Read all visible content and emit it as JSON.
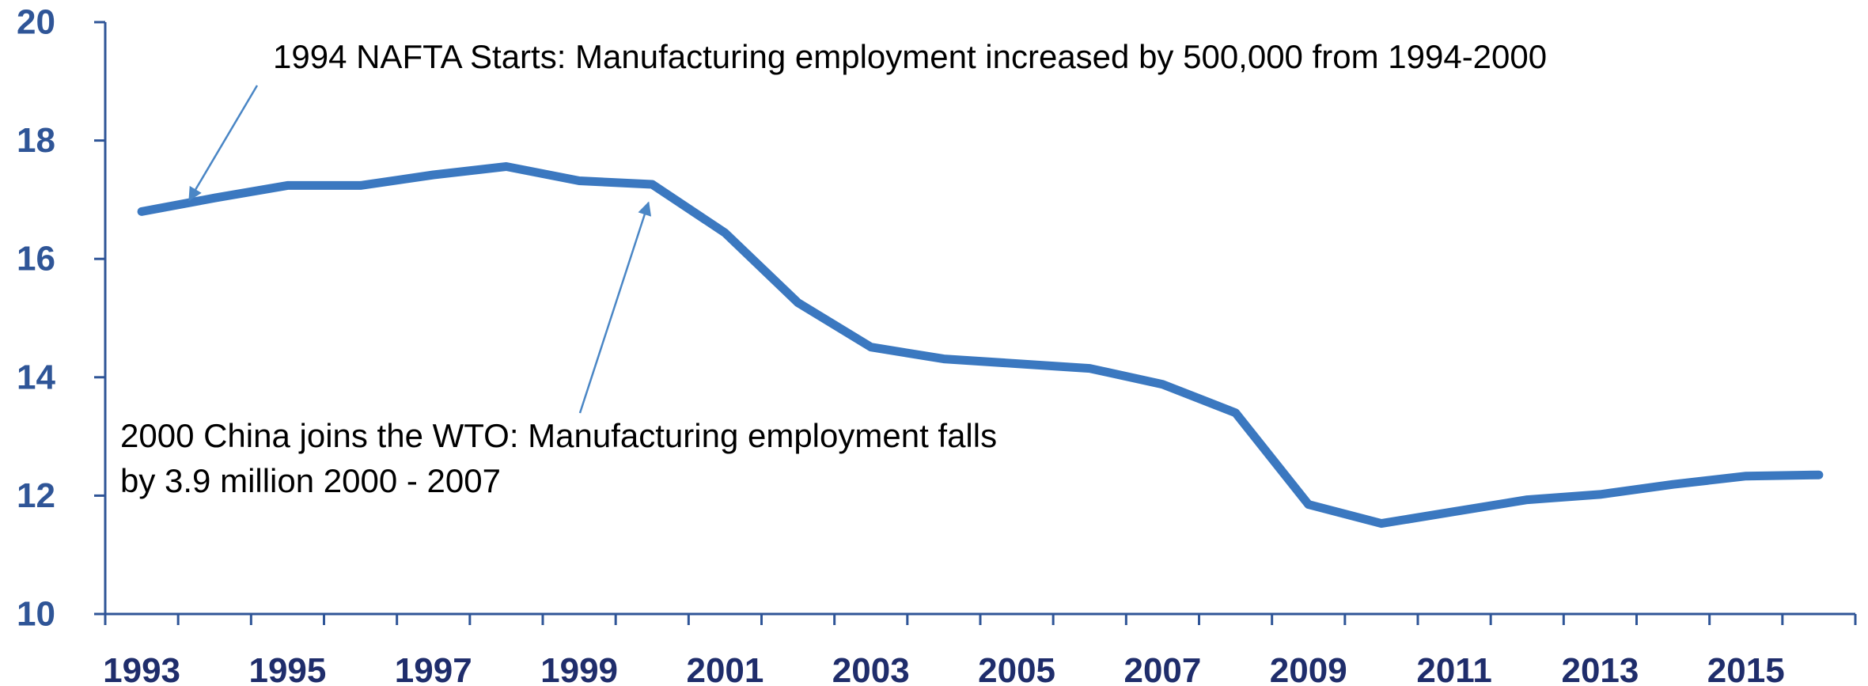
{
  "chart_data": {
    "type": "line",
    "title": "",
    "xlabel": "",
    "ylabel": "",
    "ylim": [
      10,
      20
    ],
    "y_ticks": [
      "10",
      "12",
      "14",
      "16",
      "18",
      "20"
    ],
    "x_tick_labels": [
      "1993",
      "1995",
      "1997",
      "1999",
      "2001",
      "2003",
      "2005",
      "2007",
      "2009",
      "2011",
      "2013",
      "2015"
    ],
    "x_range": [
      1993,
      2017
    ],
    "grid": false,
    "series": [
      {
        "color": "#3b78c0",
        "points": [
          {
            "x": 1993.5,
            "y": 16.8
          },
          {
            "x": 1994.5,
            "y": 17.03
          },
          {
            "x": 1995.5,
            "y": 17.24
          },
          {
            "x": 1996.5,
            "y": 17.24
          },
          {
            "x": 1997.5,
            "y": 17.42
          },
          {
            "x": 1998.5,
            "y": 17.56
          },
          {
            "x": 1999.5,
            "y": 17.32
          },
          {
            "x": 2000.5,
            "y": 17.26
          },
          {
            "x": 2001.5,
            "y": 16.44
          },
          {
            "x": 2002.5,
            "y": 15.26
          },
          {
            "x": 2003.5,
            "y": 14.51
          },
          {
            "x": 2004.5,
            "y": 14.31
          },
          {
            "x": 2005.5,
            "y": 14.23
          },
          {
            "x": 2006.5,
            "y": 14.15
          },
          {
            "x": 2007.5,
            "y": 13.88
          },
          {
            "x": 2008.5,
            "y": 13.4
          },
          {
            "x": 2009.5,
            "y": 11.85
          },
          {
            "x": 2010.5,
            "y": 11.53
          },
          {
            "x": 2011.5,
            "y": 11.73
          },
          {
            "x": 2012.5,
            "y": 11.93
          },
          {
            "x": 2013.5,
            "y": 12.02
          },
          {
            "x": 2014.5,
            "y": 12.19
          },
          {
            "x": 2015.5,
            "y": 12.33
          },
          {
            "x": 2016.5,
            "y": 12.35
          }
        ]
      }
    ],
    "annotations": [
      {
        "lines": [
          "1994 NAFTA Starts: Manufacturing employment increased by 500,000 from 1994-2000"
        ],
        "target": {
          "x": 1994.5,
          "y": 17.1
        }
      },
      {
        "lines": [
          "2000 China joins the WTO: Manufacturing employment falls",
          "by 3.9 million 2000 - 2007"
        ],
        "target": {
          "x": 2000.45,
          "y": 16.95
        }
      }
    ],
    "colors": {
      "axis": "#2f5597",
      "y_tick_text": "#2f5597",
      "x_tick_text": "#1f2d6b",
      "annotation_arrow": "#4a86c5"
    }
  }
}
